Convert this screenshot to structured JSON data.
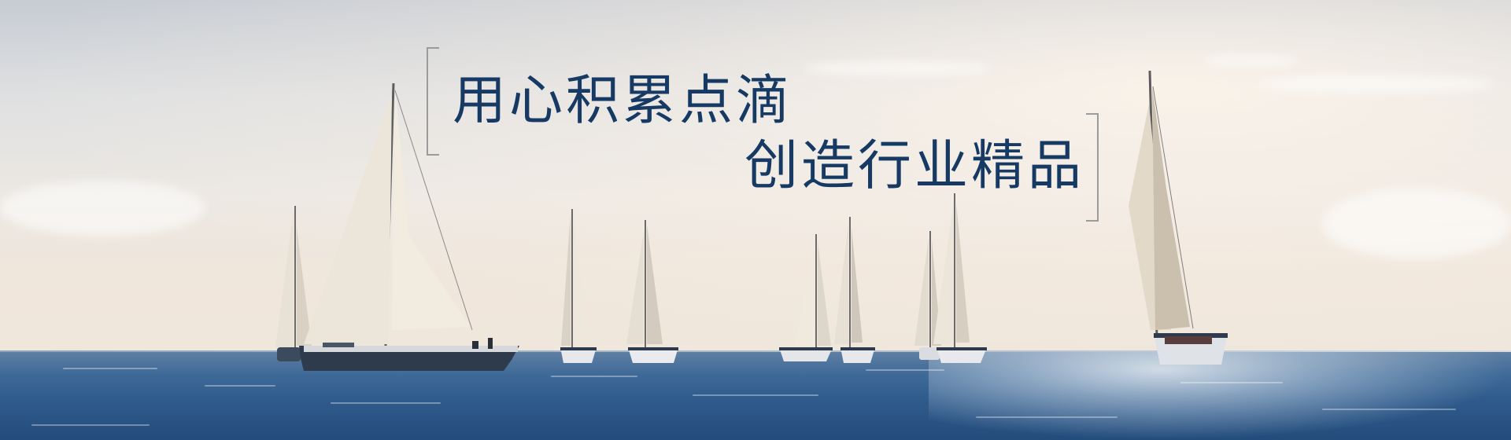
{
  "banner": {
    "slogan_line_1": "用心积累点滴",
    "slogan_line_2": "创造行业精品",
    "text_color": "#163a63",
    "sea_color": "#2f5b8c",
    "sky_color": "#ece8e3",
    "scene_icons": [
      "sailboat-icon"
    ]
  }
}
